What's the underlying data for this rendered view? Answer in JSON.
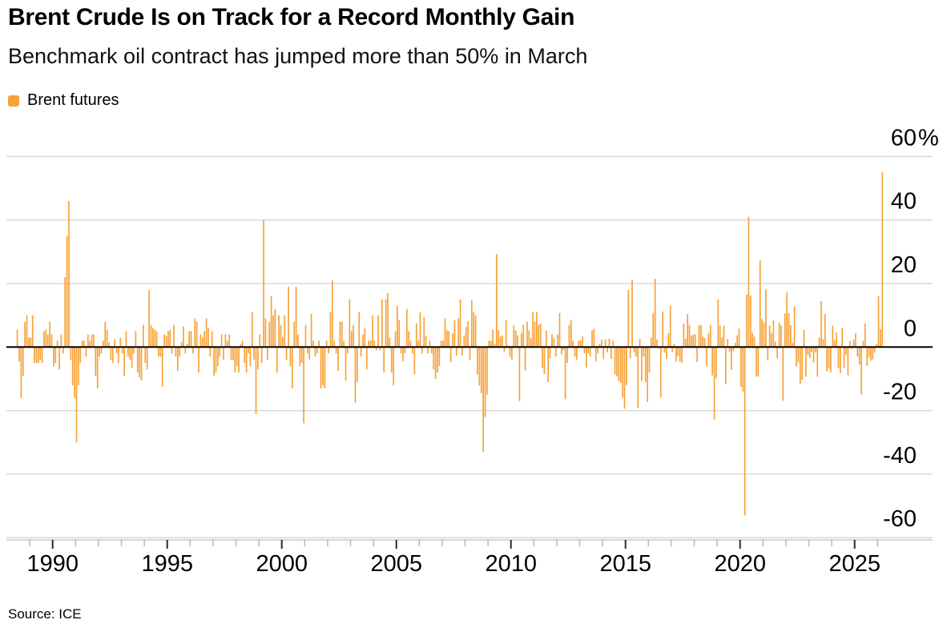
{
  "header": {
    "title": "Brent Crude Is on Track for a Record Monthly Gain",
    "subtitle": "Benchmark oil contract has jumped more than 50% in March"
  },
  "legend": {
    "label": "Brent futures",
    "swatch_color": "#F7A238"
  },
  "source": "Source: ICE",
  "chart_data": {
    "type": "bar",
    "title": "Brent Crude Is on Track for a Record Monthly Gain",
    "subtitle": "Benchmark oil contract has jumped more than 50% in March",
    "series_name": "Brent futures",
    "unit": "%",
    "frequency": "monthly",
    "start": "1988-06",
    "end": "2026-03",
    "bar_color": "#F7A238",
    "zero_line_color": "#000000",
    "gridline_color": "#d9d9d9",
    "ylim": [
      -60,
      60
    ],
    "grid": "horizontal",
    "value_axis_side": "right",
    "legend_position": "top-left",
    "y_ticks": [
      {
        "value": 60,
        "label": "60",
        "suffix": "%"
      },
      {
        "value": 40,
        "label": "40",
        "suffix": ""
      },
      {
        "value": 20,
        "label": "20",
        "suffix": ""
      },
      {
        "value": 0,
        "label": "0",
        "suffix": ""
      },
      {
        "value": -20,
        "label": "-20",
        "suffix": ""
      },
      {
        "value": -40,
        "label": "-40",
        "suffix": ""
      },
      {
        "value": -60,
        "label": "-60",
        "suffix": ""
      }
    ],
    "x_ticks_major": [
      {
        "year": 1990,
        "label": "1990"
      },
      {
        "year": 1995,
        "label": "1995"
      },
      {
        "year": 2000,
        "label": "2000"
      },
      {
        "year": 2005,
        "label": "2005"
      },
      {
        "year": 2010,
        "label": "2010"
      },
      {
        "year": 2015,
        "label": "2015"
      },
      {
        "year": 2020,
        "label": "2020"
      },
      {
        "year": 2025,
        "label": "2025"
      }
    ],
    "x_minor_ticks": {
      "from_year": 1989,
      "to_year": 2026
    },
    "values": [
      5.5,
      -4.5,
      -16,
      -9,
      8,
      10,
      3,
      3,
      10,
      -5,
      -5,
      -5,
      -4,
      -5,
      5,
      5.5,
      4,
      8,
      4,
      -6,
      -5,
      2,
      -7,
      4,
      -2,
      22,
      35,
      46,
      -4,
      -12,
      -16,
      -30,
      -12,
      -5,
      2,
      2,
      -3,
      4,
      2,
      4,
      4,
      -9,
      -13,
      -3,
      -2,
      2,
      8,
      5.5,
      1.5,
      -4,
      -5,
      2.5,
      -2,
      -5,
      3,
      -2,
      -9,
      5,
      -3,
      -4,
      -6.5,
      -2,
      5,
      -8,
      -9.5,
      -10.5,
      7,
      -5,
      -7,
      18,
      7,
      6,
      5.5,
      5,
      -3,
      -3,
      -12.5,
      4,
      3.5,
      5,
      5.5,
      -2,
      7,
      -3,
      -7.5,
      -3,
      1.5,
      6.5,
      -2,
      1,
      5,
      5,
      -2,
      9,
      8,
      -8,
      4,
      3,
      5,
      9,
      6,
      -3,
      5,
      -9,
      -8,
      -6,
      -3,
      4,
      -4,
      4,
      2,
      4,
      -4,
      -4,
      -8,
      -6,
      -8,
      1,
      2,
      -5,
      -8,
      -2,
      -6,
      11,
      -4,
      -21,
      -7,
      4,
      -5,
      40,
      9,
      -4,
      8,
      16,
      10,
      12,
      -8,
      10,
      7,
      3,
      10,
      -4,
      19,
      -6,
      -13,
      8,
      19,
      4,
      -6,
      -5,
      -24,
      7,
      -2,
      -4,
      10.5,
      2,
      -3,
      -2,
      2,
      -13,
      -12,
      -13,
      2,
      -2,
      11,
      21,
      2,
      -2,
      -7.5,
      8,
      8,
      2,
      -10.5,
      -2,
      15,
      5,
      7,
      -17.5,
      -11,
      11,
      -3,
      4,
      6,
      -7,
      2,
      2,
      10,
      2,
      -1,
      10,
      -1,
      15,
      -8,
      15,
      17,
      3,
      -8,
      -12,
      5,
      13,
      8.5,
      -2,
      -4.5,
      -2,
      12,
      5,
      2,
      -2,
      -8.6,
      7.5,
      2,
      11,
      -2,
      9.5,
      3.5,
      -2,
      2,
      -2,
      -7,
      -10,
      -8,
      -6,
      2,
      2,
      9,
      5.3,
      5,
      -4.7,
      4.3,
      8.4,
      -2.7,
      9,
      15,
      -2.6,
      3.7,
      6.3,
      8.2,
      -4,
      14.8,
      11,
      10,
      -8.7,
      -12.1,
      -14.5,
      -33,
      -22,
      -15,
      2,
      2,
      5.5,
      1,
      29.3,
      5.4,
      3.3,
      3.6,
      -1.5,
      8.5,
      0.5,
      -3,
      -4,
      6.8,
      5.2,
      3.7,
      -17,
      4.5,
      7,
      -7.4,
      8,
      5.2,
      2.8,
      11,
      8,
      11,
      7,
      7.5,
      -6.5,
      -8.5,
      5.2,
      -11,
      -3.5,
      4,
      2.8,
      -3,
      4,
      10.7,
      -2.3,
      -1,
      -16.4,
      -5,
      7,
      8.6,
      2,
      -3,
      -4,
      2,
      2,
      3.4,
      -2,
      -6.4,
      -2,
      -3,
      5.2,
      5.8,
      -4.5,
      -2,
      1,
      2.3,
      -3.8,
      2.5,
      -1.7,
      2.7,
      -3.7,
      2,
      -8.6,
      -9.2,
      -10.7,
      -11.2,
      -15.8,
      -19.4,
      -12,
      18,
      -3.5,
      21.2,
      -1.6,
      -3,
      -19.2,
      2.6,
      -10.7,
      -3,
      -11,
      -17.3,
      -8,
      3,
      10.8,
      21.5,
      2.4,
      -0.5,
      -15.9,
      11.2,
      -1.8,
      -3.8,
      4.4,
      13,
      -1.7,
      1,
      -4.6,
      -2.8,
      -4.6,
      -5,
      7.4,
      2.6,
      10.4,
      7,
      3.6,
      4,
      4,
      -4.7,
      6.8,
      7,
      3.3,
      2.9,
      -6,
      4.3,
      7,
      -8.9,
      -22.8,
      -9.8,
      15,
      6.8,
      3,
      6.8,
      -11.7,
      2.5,
      -1.5,
      -7.2,
      -1.3,
      1.3,
      3.7,
      5.8,
      -12.5,
      -14,
      -53,
      16.5,
      41,
      16.2,
      4.5,
      3.3,
      -9.3,
      -9.3,
      27.3,
      8.8,
      7.7,
      18.2,
      -4.2,
      6.8,
      4.5,
      8.4,
      1.7,
      -3.5,
      7.7,
      6.8,
      -16.9,
      10.5,
      17.3,
      10.7,
      6.9,
      1.3,
      12.8,
      -6.1,
      -4.8,
      -11.6,
      -10.3,
      5.4,
      -9.3,
      -2.5,
      -3.4,
      -1.5,
      -4.8,
      -1.7,
      -9.3,
      3,
      14.5,
      2.5,
      10.5,
      -7.6,
      -6.7,
      -8,
      6.8,
      2.3,
      4.6,
      -6.5,
      -8.2,
      5.9,
      -6.6,
      -2.4,
      -8.9,
      1.9,
      -0.5,
      2.3,
      4.3,
      -3,
      -5.5,
      -15,
      2,
      7.5,
      -5.9,
      -3.1,
      -4.3,
      -3.9,
      -1.7,
      1,
      16,
      5.6,
      55
    ]
  }
}
